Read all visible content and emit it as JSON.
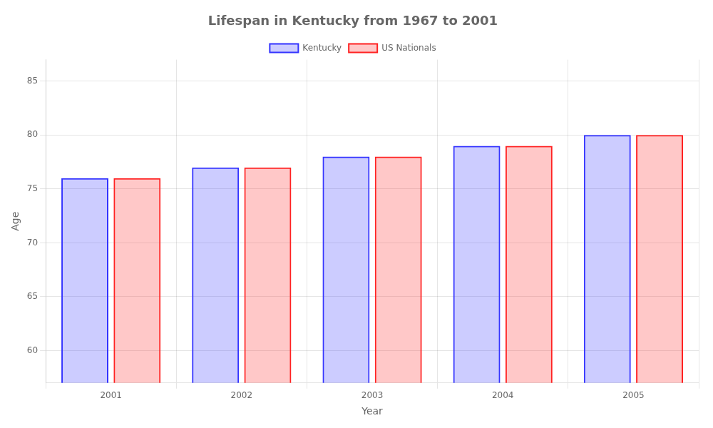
{
  "chart_data": {
    "type": "bar",
    "title": "Lifespan in Kentucky from 1967 to 2001",
    "xlabel": "Year",
    "ylabel": "Age",
    "categories": [
      "2001",
      "2002",
      "2003",
      "2004",
      "2005"
    ],
    "series": [
      {
        "name": "Kentucky",
        "color": "#3333ff",
        "values": [
          76,
          77,
          78,
          79,
          80
        ]
      },
      {
        "name": "US Nationals",
        "color": "#ff2222",
        "values": [
          76,
          77,
          78,
          79,
          80
        ]
      }
    ],
    "ylim": [
      57,
      87
    ],
    "yticks": [
      60,
      65,
      70,
      75,
      80,
      85
    ],
    "grid": true,
    "legend": "top"
  }
}
